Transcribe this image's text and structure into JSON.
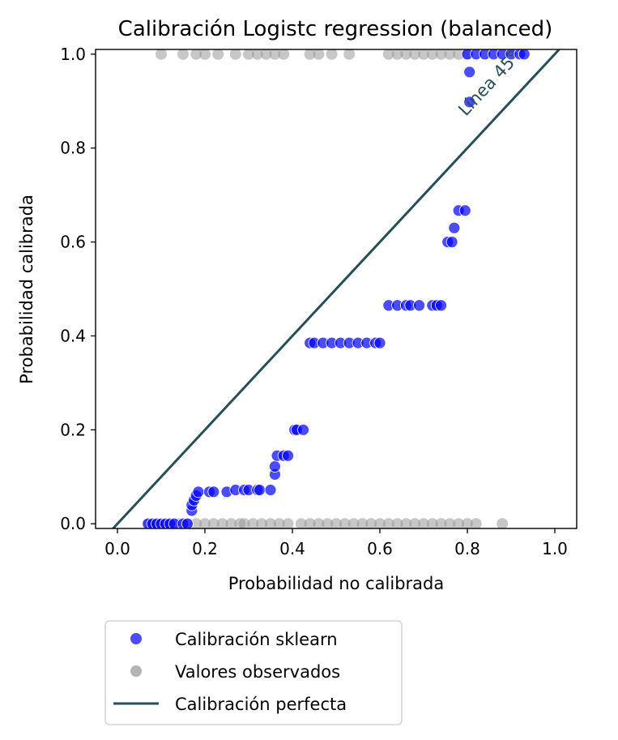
{
  "chart_data": {
    "type": "scatter",
    "title": "Calibración Logistc regression (balanced)",
    "xlabel": "Probabilidad no calibrada",
    "ylabel": "Probabilidad calibrada",
    "xlim": [
      -0.05,
      1.05
    ],
    "ylim": [
      -0.01,
      1.01
    ],
    "x_ticks": [
      "0.0",
      "0.2",
      "0.4",
      "0.6",
      "0.8",
      "1.0"
    ],
    "y_ticks": [
      "0.0",
      "0.2",
      "0.4",
      "0.6",
      "0.8",
      "1.0"
    ],
    "grid": false,
    "legend_position": "bottom-outside",
    "annotation": {
      "text": "Línea 45°",
      "x": 0.86,
      "y": 0.93,
      "color": "#264f56"
    },
    "colors": {
      "sklearn": "#0000ff",
      "observed": "#999999",
      "perfect": "#264f56"
    },
    "series": [
      {
        "name": "Calibración sklearn",
        "kind": "scatter",
        "points": [
          [
            0.07,
            0.0
          ],
          [
            0.08,
            0.0
          ],
          [
            0.09,
            0.0
          ],
          [
            0.1,
            0.0
          ],
          [
            0.11,
            0.0
          ],
          [
            0.12,
            0.0
          ],
          [
            0.13,
            0.0
          ],
          [
            0.15,
            0.0
          ],
          [
            0.16,
            0.0
          ],
          [
            0.17,
            0.028
          ],
          [
            0.17,
            0.04
          ],
          [
            0.175,
            0.05
          ],
          [
            0.18,
            0.06
          ],
          [
            0.185,
            0.068
          ],
          [
            0.21,
            0.068
          ],
          [
            0.22,
            0.068
          ],
          [
            0.25,
            0.068
          ],
          [
            0.27,
            0.072
          ],
          [
            0.29,
            0.072
          ],
          [
            0.3,
            0.072
          ],
          [
            0.32,
            0.072
          ],
          [
            0.325,
            0.072
          ],
          [
            0.35,
            0.072
          ],
          [
            0.36,
            0.105
          ],
          [
            0.36,
            0.122
          ],
          [
            0.365,
            0.145
          ],
          [
            0.38,
            0.145
          ],
          [
            0.39,
            0.145
          ],
          [
            0.405,
            0.2
          ],
          [
            0.41,
            0.2
          ],
          [
            0.425,
            0.2
          ],
          [
            0.44,
            0.385
          ],
          [
            0.45,
            0.385
          ],
          [
            0.47,
            0.385
          ],
          [
            0.49,
            0.385
          ],
          [
            0.51,
            0.385
          ],
          [
            0.53,
            0.385
          ],
          [
            0.55,
            0.385
          ],
          [
            0.57,
            0.385
          ],
          [
            0.59,
            0.385
          ],
          [
            0.6,
            0.385
          ],
          [
            0.62,
            0.465
          ],
          [
            0.64,
            0.465
          ],
          [
            0.66,
            0.465
          ],
          [
            0.67,
            0.465
          ],
          [
            0.69,
            0.465
          ],
          [
            0.72,
            0.465
          ],
          [
            0.73,
            0.465
          ],
          [
            0.74,
            0.465
          ],
          [
            0.755,
            0.6
          ],
          [
            0.765,
            0.6
          ],
          [
            0.77,
            0.63
          ],
          [
            0.78,
            0.667
          ],
          [
            0.795,
            0.667
          ],
          [
            0.805,
            0.898
          ],
          [
            0.805,
            0.962
          ],
          [
            0.8,
            1.0
          ],
          [
            0.82,
            1.0
          ],
          [
            0.84,
            1.0
          ],
          [
            0.86,
            1.0
          ],
          [
            0.88,
            1.0
          ],
          [
            0.9,
            1.0
          ],
          [
            0.92,
            1.0
          ],
          [
            0.93,
            1.0
          ]
        ]
      },
      {
        "name": "Valores observados",
        "kind": "scatter",
        "points": [
          [
            0.07,
            0.0
          ],
          [
            0.09,
            0.0
          ],
          [
            0.12,
            0.0
          ],
          [
            0.14,
            0.0
          ],
          [
            0.16,
            0.0
          ],
          [
            0.18,
            0.0
          ],
          [
            0.2,
            0.0
          ],
          [
            0.22,
            0.0
          ],
          [
            0.24,
            0.0
          ],
          [
            0.26,
            0.0
          ],
          [
            0.28,
            0.0
          ],
          [
            0.29,
            0.0
          ],
          [
            0.31,
            0.0
          ],
          [
            0.33,
            0.0
          ],
          [
            0.35,
            0.0
          ],
          [
            0.37,
            0.0
          ],
          [
            0.39,
            0.0
          ],
          [
            0.42,
            0.0
          ],
          [
            0.44,
            0.0
          ],
          [
            0.46,
            0.0
          ],
          [
            0.48,
            0.0
          ],
          [
            0.5,
            0.0
          ],
          [
            0.52,
            0.0
          ],
          [
            0.54,
            0.0
          ],
          [
            0.56,
            0.0
          ],
          [
            0.58,
            0.0
          ],
          [
            0.6,
            0.0
          ],
          [
            0.62,
            0.0
          ],
          [
            0.64,
            0.0
          ],
          [
            0.66,
            0.0
          ],
          [
            0.68,
            0.0
          ],
          [
            0.7,
            0.0
          ],
          [
            0.72,
            0.0
          ],
          [
            0.74,
            0.0
          ],
          [
            0.76,
            0.0
          ],
          [
            0.78,
            0.0
          ],
          [
            0.8,
            0.0
          ],
          [
            0.82,
            0.0
          ],
          [
            0.88,
            0.0
          ],
          [
            0.1,
            1.0
          ],
          [
            0.15,
            1.0
          ],
          [
            0.18,
            1.0
          ],
          [
            0.2,
            1.0
          ],
          [
            0.23,
            1.0
          ],
          [
            0.27,
            1.0
          ],
          [
            0.3,
            1.0
          ],
          [
            0.32,
            1.0
          ],
          [
            0.34,
            1.0
          ],
          [
            0.36,
            1.0
          ],
          [
            0.38,
            1.0
          ],
          [
            0.44,
            1.0
          ],
          [
            0.46,
            1.0
          ],
          [
            0.49,
            1.0
          ],
          [
            0.53,
            1.0
          ],
          [
            0.62,
            1.0
          ],
          [
            0.64,
            1.0
          ],
          [
            0.66,
            1.0
          ],
          [
            0.68,
            1.0
          ],
          [
            0.7,
            1.0
          ],
          [
            0.72,
            1.0
          ],
          [
            0.74,
            1.0
          ],
          [
            0.76,
            1.0
          ],
          [
            0.78,
            1.0
          ],
          [
            0.8,
            1.0
          ]
        ]
      },
      {
        "name": "Calibración perfecta",
        "kind": "line",
        "points": [
          [
            -0.01,
            -0.01
          ],
          [
            1.01,
            1.01
          ]
        ]
      }
    ]
  }
}
